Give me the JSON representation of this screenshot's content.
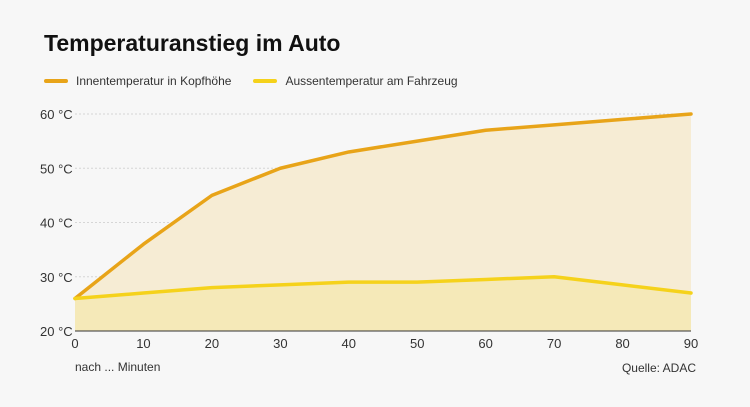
{
  "chart_data": {
    "type": "area",
    "title": "Temperaturanstieg im Auto",
    "xlabel": "nach ... Minuten",
    "source": "Quelle: ADAC",
    "x": [
      0,
      10,
      20,
      30,
      40,
      50,
      60,
      70,
      80,
      90
    ],
    "xlim": [
      0,
      90
    ],
    "ylim": [
      20,
      60
    ],
    "y_ticks": [
      20,
      30,
      40,
      50,
      60
    ],
    "y_tick_labels": [
      "20 °C",
      "30 °C",
      "40 °C",
      "50 °C",
      "60 °C"
    ],
    "x_ticks": [
      0,
      10,
      20,
      30,
      40,
      50,
      60,
      70,
      80,
      90
    ],
    "x_tick_labels": [
      "0",
      "10",
      "20",
      "30",
      "40",
      "50",
      "60",
      "70",
      "80",
      "90"
    ],
    "grid": true,
    "legend_position": "top-left",
    "series": [
      {
        "name": "Innentemperatur in Kopfhöhe",
        "color": "#e8a419",
        "fill": "#f6ecd4",
        "values": [
          26,
          36,
          45,
          50,
          53,
          55,
          57,
          58,
          59,
          60
        ]
      },
      {
        "name": "Aussentemperatur am Fahrzeug",
        "color": "#f5d21b",
        "fill": "#f5e9b8",
        "values": [
          26,
          27,
          28,
          28.5,
          29,
          29,
          29.5,
          30,
          28.5,
          27
        ]
      }
    ]
  }
}
